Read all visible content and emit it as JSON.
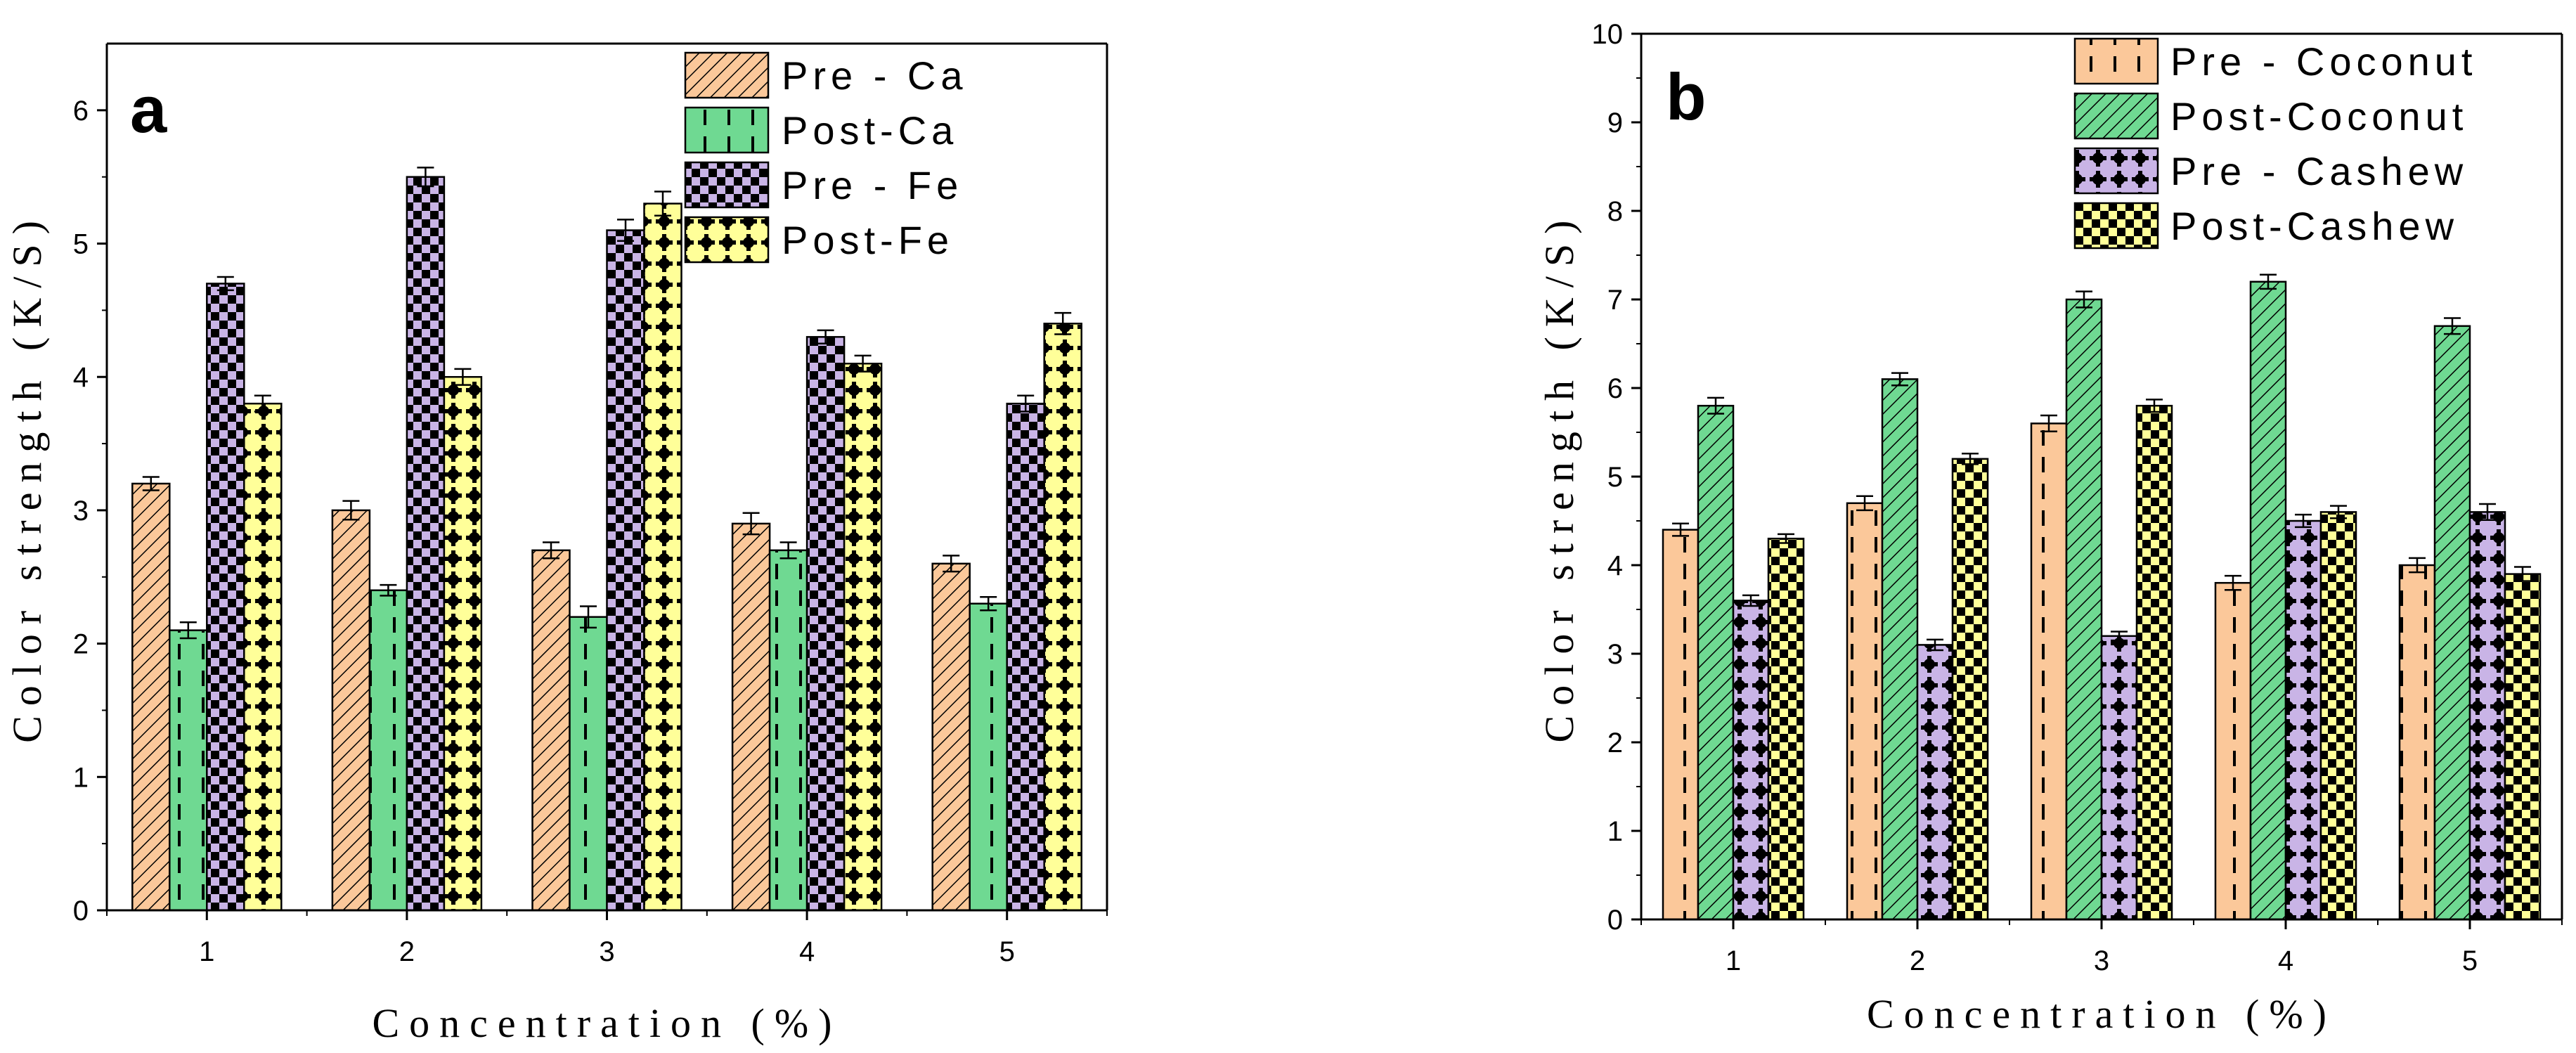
{
  "chart_data": [
    {
      "panel": "a",
      "type": "bar",
      "title": "",
      "xlabel": "Concentration (%)",
      "ylabel": "Color strength (K/S)",
      "categories": [
        "1",
        "2",
        "3",
        "4",
        "5"
      ],
      "ylim": [
        0,
        6.5
      ],
      "yticks": [
        "0",
        "1",
        "2",
        "3",
        "4",
        "5",
        "6"
      ],
      "legend_position": "top-right",
      "series": [
        {
          "name": "Pre - Ca",
          "values": [
            3.2,
            3.0,
            2.7,
            2.9,
            2.6
          ],
          "errors": [
            0.05,
            0.07,
            0.06,
            0.08,
            0.06
          ],
          "color": "#fbc89a",
          "pattern": "diagonal-hatch"
        },
        {
          "name": "Post-Ca",
          "values": [
            2.1,
            2.4,
            2.2,
            2.7,
            2.3
          ],
          "errors": [
            0.06,
            0.04,
            0.08,
            0.06,
            0.05
          ],
          "color": "#6fd992",
          "pattern": "vertical-dashes"
        },
        {
          "name": "Pre - Fe",
          "values": [
            4.7,
            5.5,
            5.1,
            4.3,
            3.8
          ],
          "errors": [
            0.05,
            0.07,
            0.08,
            0.05,
            0.06
          ],
          "color": "#c9b4e6",
          "pattern": "checkerboard"
        },
        {
          "name": "Post-Fe",
          "values": [
            3.8,
            4.0,
            5.3,
            4.1,
            4.4
          ],
          "errors": [
            0.06,
            0.06,
            0.09,
            0.06,
            0.08
          ],
          "color": "#ffff99",
          "pattern": "crosses"
        }
      ]
    },
    {
      "panel": "b",
      "type": "bar",
      "title": "",
      "xlabel": "Concentration (%)",
      "ylabel": "Color strength (K/S)",
      "categories": [
        "1",
        "2",
        "3",
        "4",
        "5"
      ],
      "ylim": [
        0,
        10
      ],
      "yticks": [
        "0",
        "1",
        "2",
        "3",
        "4",
        "5",
        "6",
        "7",
        "8",
        "9",
        "10"
      ],
      "legend_position": "top-right",
      "series": [
        {
          "name": "Pre - Coconut",
          "values": [
            4.4,
            4.7,
            5.6,
            3.8,
            4.0
          ],
          "errors": [
            0.07,
            0.08,
            0.09,
            0.08,
            0.08
          ],
          "color": "#fbc89a",
          "pattern": "vertical-dashes"
        },
        {
          "name": "Post-Coconut",
          "values": [
            5.8,
            6.1,
            7.0,
            7.2,
            6.7
          ],
          "errors": [
            0.09,
            0.07,
            0.09,
            0.08,
            0.09
          ],
          "color": "#6fd992",
          "pattern": "diagonal-hatch"
        },
        {
          "name": "Pre - Cashew",
          "values": [
            3.6,
            3.1,
            3.2,
            4.5,
            4.6
          ],
          "errors": [
            0.06,
            0.06,
            0.05,
            0.07,
            0.09
          ],
          "color": "#c9b4e6",
          "pattern": "crosses"
        },
        {
          "name": "Post-Cashew",
          "values": [
            4.3,
            5.2,
            5.8,
            4.6,
            3.9
          ],
          "errors": [
            0.05,
            0.06,
            0.07,
            0.07,
            0.08
          ],
          "color": "#ffff99",
          "pattern": "checkerboard"
        }
      ]
    }
  ]
}
